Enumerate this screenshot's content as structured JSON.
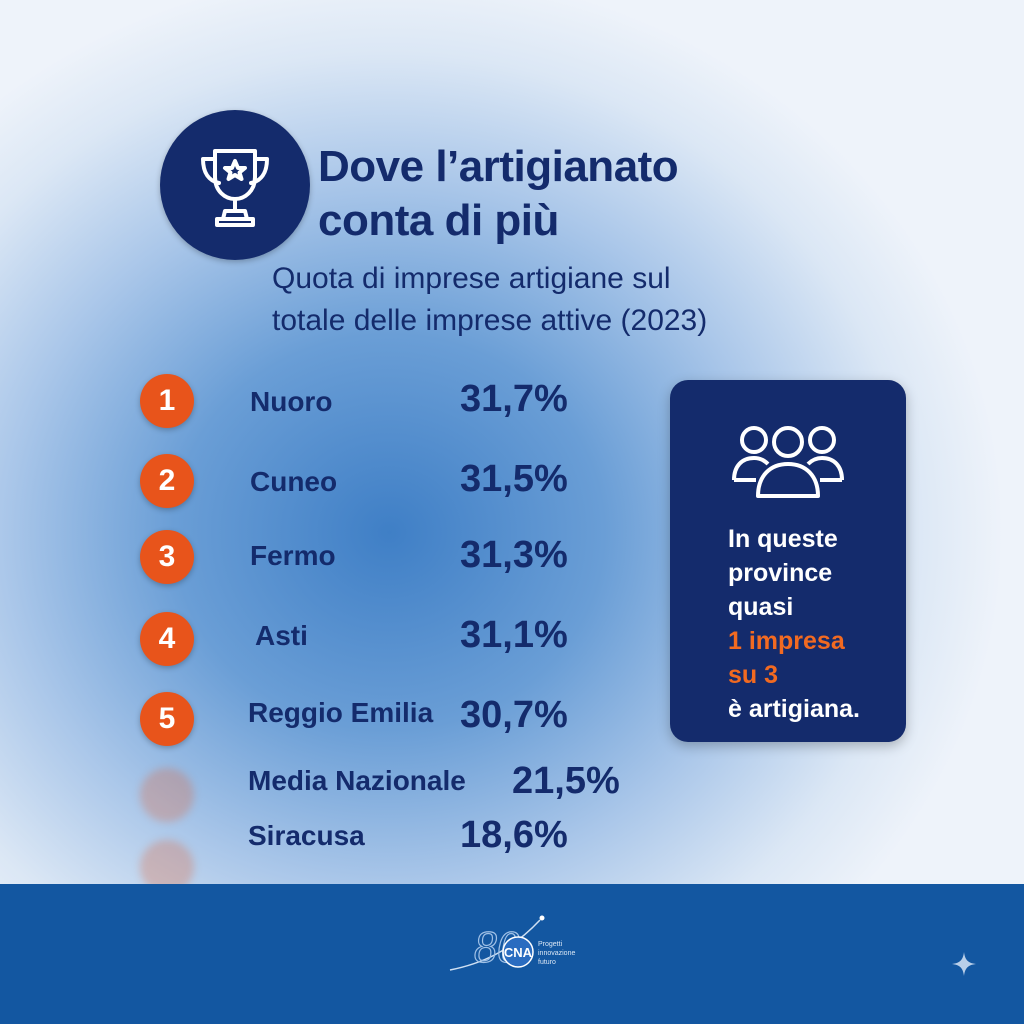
{
  "colors": {
    "navy": "#142b6c",
    "accent_orange": "#e8541b",
    "footer_blue": "#1357a1",
    "highlight_orange": "#f26a21"
  },
  "header": {
    "icon": "trophy-icon",
    "title_line1": "Dove l’artigianato",
    "title_line2": "conta di più",
    "subtitle_line1": "Quota di imprese artigiane sul",
    "subtitle_line2": "totale delle imprese attive (2023)"
  },
  "ranking": [
    {
      "rank": "1",
      "province": "Nuoro",
      "value": "31,7%"
    },
    {
      "rank": "2",
      "province": "Cuneo",
      "value": "31,5%"
    },
    {
      "rank": "3",
      "province": "Fermo",
      "value": "31,3%"
    },
    {
      "rank": "4",
      "province": "Asti",
      "value": "31,1%"
    },
    {
      "rank": "5",
      "province": "Reggio Emilia",
      "value": "30,7%"
    }
  ],
  "reference": [
    {
      "label": "Media Nazionale",
      "value": "21,5%"
    },
    {
      "label": "Siracusa",
      "value": "18,6%"
    }
  ],
  "card": {
    "icon": "people-group-icon",
    "line1": "In queste",
    "line2": "province",
    "line3": "quasi",
    "highlight1": "1 impresa",
    "highlight2": "su 3",
    "line4": "è artigiana."
  },
  "footer": {
    "logo_text": "CNA",
    "logo_number": "80",
    "logo_tagline_1": "Progetti",
    "logo_tagline_2": "innovazione",
    "logo_tagline_3": "futuro",
    "sparkle_icon": "sparkle-icon"
  }
}
